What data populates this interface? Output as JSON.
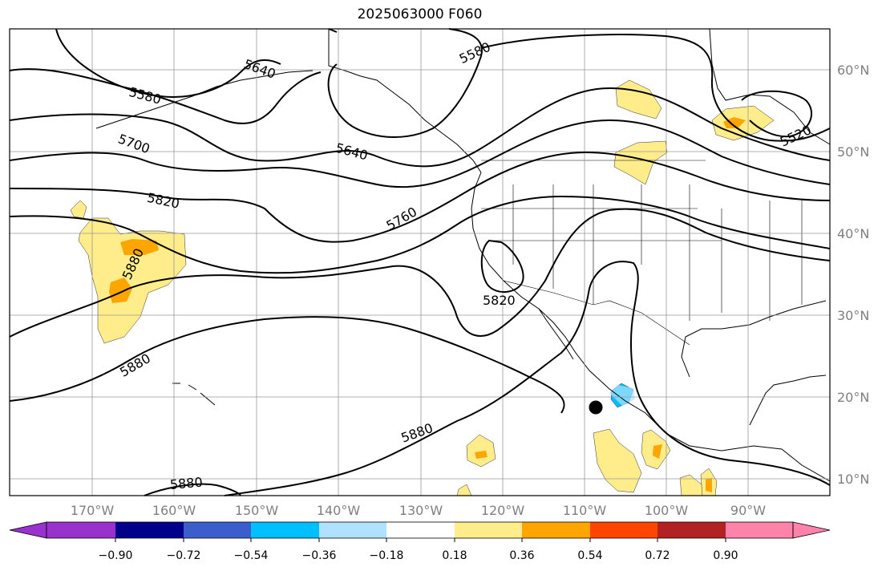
{
  "title": "2025063000 F060",
  "map": {
    "lat_labels": [
      "60°N",
      "50°N",
      "40°N",
      "30°N",
      "20°N",
      "10°N"
    ],
    "lon_labels": [
      "170°W",
      "160°W",
      "150°W",
      "140°W",
      "130°W",
      "120°W",
      "110°W",
      "100°W",
      "90°W"
    ],
    "contour_labels": [
      "5520",
      "5580",
      "5580",
      "5640",
      "5640",
      "5700",
      "5760",
      "5820",
      "5820",
      "5880",
      "5880",
      "5880",
      "5880"
    ]
  },
  "colorbar": {
    "ticks": [
      "−0.90",
      "−0.72",
      "−0.54",
      "−0.36",
      "−0.18",
      "0.18",
      "0.36",
      "0.54",
      "0.72",
      "0.90"
    ],
    "colors": [
      "#9932cc",
      "#00008b",
      "#3a5fcd",
      "#00bfff",
      "#b0e2ff",
      "#ffffff",
      "#ffec8b",
      "#ffa500",
      "#ff4500",
      "#b22222",
      "#ff82ab"
    ]
  }
}
